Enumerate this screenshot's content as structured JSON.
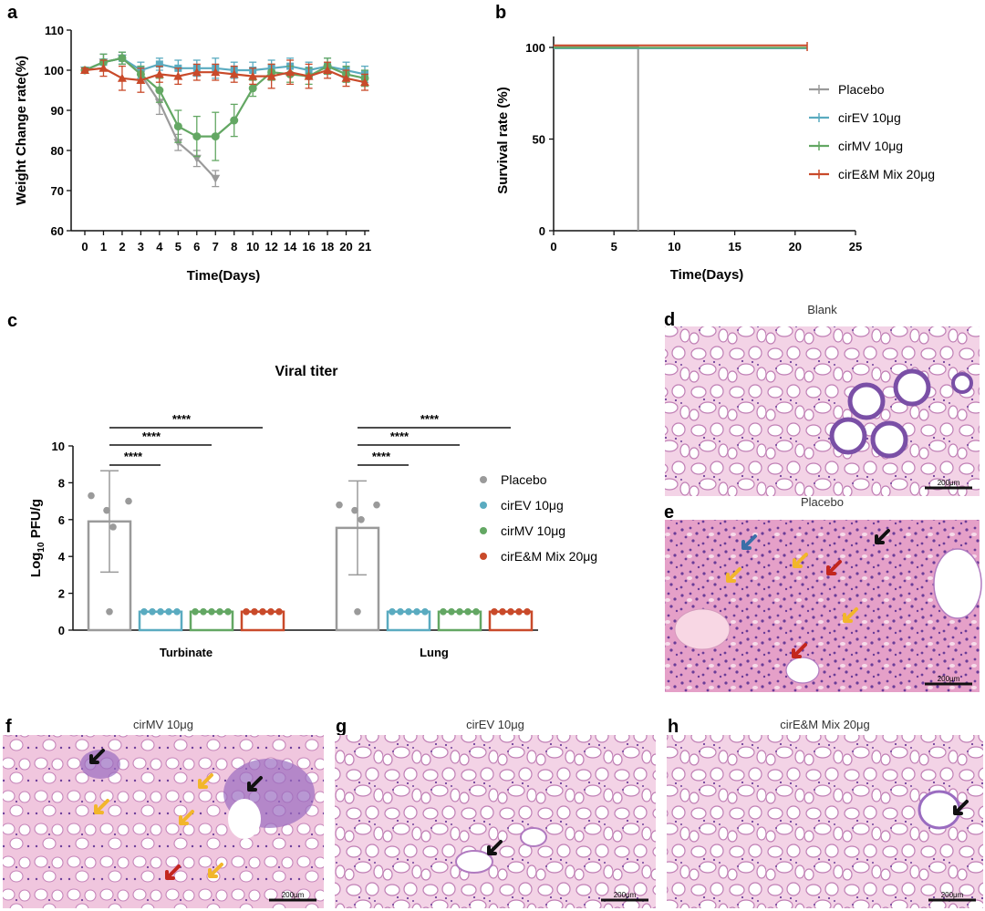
{
  "colors": {
    "placebo": "#9a9a9a",
    "cirEV": "#5aabc0",
    "cirMV": "#63a763",
    "cirEM": "#c94a2a",
    "tissue_pink": "#efc4dc",
    "tissue_purple": "#7a4fa6",
    "arrow_black": "#111111",
    "arrow_yellow": "#f2b62b",
    "arrow_red": "#c3261e",
    "arrow_blue": "#3b6fa8"
  },
  "panels": {
    "a": "a",
    "b": "b",
    "c": "c",
    "d": "d",
    "e": "e",
    "f": "f",
    "g": "g",
    "h": "h"
  },
  "chart_data": [
    {
      "panel": "a",
      "type": "line",
      "title": "",
      "xlabel": "Time(Days)",
      "ylabel": "Weight Change rate(%)",
      "ylim": [
        60,
        110
      ],
      "yticks": [
        "60",
        "70",
        "80",
        "90",
        "100",
        "110"
      ],
      "categories": [
        "0",
        "1",
        "2",
        "3",
        "4",
        "5",
        "6",
        "7",
        "8",
        "10",
        "12",
        "14",
        "16",
        "18",
        "20",
        "21"
      ],
      "series": [
        {
          "key": "placebo",
          "values": [
            100,
            102,
            103,
            99,
            92,
            82,
            78,
            73,
            null,
            null,
            null,
            null,
            null,
            null,
            null,
            null
          ],
          "errors": [
            0.5,
            2,
            1.5,
            2,
            3,
            2,
            2,
            2,
            0,
            0,
            0,
            0,
            0,
            0,
            0,
            0
          ]
        },
        {
          "key": "cirEV",
          "values": [
            100,
            102,
            103,
            100,
            101.5,
            100.5,
            100.5,
            100.5,
            100,
            100,
            100.5,
            101,
            100,
            101,
            100,
            99
          ],
          "errors": [
            0.5,
            2,
            1.5,
            2,
            1.5,
            2,
            2,
            2.5,
            2,
            2,
            2,
            2,
            2,
            2,
            2,
            2
          ]
        },
        {
          "key": "cirMV",
          "values": [
            100,
            102,
            103,
            99,
            95,
            86,
            83.5,
            83.5,
            87.5,
            95.5,
            99.5,
            99,
            98.5,
            101,
            99,
            98
          ],
          "errors": [
            0.5,
            2,
            1.5,
            2,
            3,
            4,
            5,
            6,
            4,
            2,
            2,
            2,
            2,
            2,
            2,
            2
          ]
        },
        {
          "key": "cirEM",
          "values": [
            100,
            100.5,
            98,
            97.5,
            99,
            98.5,
            99.5,
            99.5,
            99,
            98.5,
            98.5,
            99.5,
            98.5,
            100,
            98,
            97
          ],
          "errors": [
            0.5,
            2,
            3,
            3,
            2,
            2,
            2,
            2,
            2,
            2,
            3,
            3,
            3,
            2,
            2,
            2
          ]
        }
      ]
    },
    {
      "panel": "b",
      "type": "line",
      "title": "",
      "xlabel": "Time(Days)",
      "ylabel": "Survival rate (%)",
      "xlim": [
        0,
        25
      ],
      "ylim": [
        0,
        100
      ],
      "xticks": [
        "0",
        "5",
        "10",
        "15",
        "20",
        "25"
      ],
      "yticks": [
        "0",
        "50",
        "100"
      ],
      "series": [
        {
          "key": "placebo",
          "name": "Placebo",
          "points": [
            [
              0,
              100
            ],
            [
              7,
              100
            ],
            [
              7,
              0
            ]
          ]
        },
        {
          "key": "cirEV",
          "name": "cirEV 10μg",
          "points": [
            [
              0,
              100
            ],
            [
              21,
              100
            ]
          ]
        },
        {
          "key": "cirMV",
          "name": "cirMV 10μg",
          "points": [
            [
              0,
              100
            ],
            [
              21,
              100
            ]
          ]
        },
        {
          "key": "cirEM",
          "name": "cirE&M Mix 20μg",
          "points": [
            [
              0,
              100
            ],
            [
              21,
              100
            ]
          ]
        }
      ],
      "legend_placement": "right"
    },
    {
      "panel": "c",
      "type": "bar",
      "title": "Viral titer",
      "xlabel": "",
      "ylabel_main": "Log",
      "ylabel_sub": "10",
      "ylabel_tail": " PFU/g",
      "ylim": [
        0,
        10
      ],
      "yticks": [
        "0",
        "2",
        "4",
        "6",
        "8",
        "10"
      ],
      "categories": [
        "Turbinate",
        "Lung"
      ],
      "groups": [
        {
          "category": "Turbinate",
          "bars": [
            {
              "key": "placebo",
              "value": 5.9,
              "error": 2.75,
              "points": [
                7.3,
                6.5,
                7.0,
                5.6,
                1.0
              ]
            },
            {
              "key": "cirEV",
              "value": 1.0,
              "error": 0,
              "points": [
                1,
                1,
                1,
                1,
                1
              ]
            },
            {
              "key": "cirMV",
              "value": 1.0,
              "error": 0,
              "points": [
                1,
                1,
                1,
                1,
                1
              ]
            },
            {
              "key": "cirEM",
              "value": 1.0,
              "error": 0,
              "points": [
                1,
                1,
                1,
                1,
                1
              ]
            }
          ],
          "significance": [
            "****",
            "****",
            "****"
          ]
        },
        {
          "category": "Lung",
          "bars": [
            {
              "key": "placebo",
              "value": 5.55,
              "error": 2.55,
              "points": [
                6.8,
                6.5,
                6.8,
                6.0,
                1.0
              ]
            },
            {
              "key": "cirEV",
              "value": 1.0,
              "error": 0,
              "points": [
                1,
                1,
                1,
                1,
                1
              ]
            },
            {
              "key": "cirMV",
              "value": 1.0,
              "error": 0,
              "points": [
                1,
                1,
                1,
                1,
                1
              ]
            },
            {
              "key": "cirEM",
              "value": 1.0,
              "error": 0,
              "points": [
                1,
                1,
                1,
                1,
                1
              ]
            }
          ],
          "significance": [
            "****",
            "****",
            "****"
          ]
        }
      ],
      "legend": [
        {
          "key": "placebo",
          "name": "Placebo"
        },
        {
          "key": "cirEV",
          "name": "cirEV 10μg"
        },
        {
          "key": "cirMV",
          "name": "cirMV 10μg"
        },
        {
          "key": "cirEM",
          "name": "cirE&M Mix 20μg"
        }
      ],
      "legend_placement": "right"
    }
  ],
  "images": {
    "d": {
      "title": "Blank",
      "scale": "200μm",
      "style": "normal"
    },
    "e": {
      "title": "Placebo",
      "scale": "200μm",
      "style": "damaged"
    },
    "f": {
      "title": "cirMV 10μg",
      "scale": "200μm",
      "style": "medium"
    },
    "g": {
      "title": "cirEV 10μg",
      "scale": "200μm",
      "style": "normal"
    },
    "h": {
      "title": "cirE&M Mix 20μg",
      "scale": "200μm",
      "style": "normal"
    }
  }
}
